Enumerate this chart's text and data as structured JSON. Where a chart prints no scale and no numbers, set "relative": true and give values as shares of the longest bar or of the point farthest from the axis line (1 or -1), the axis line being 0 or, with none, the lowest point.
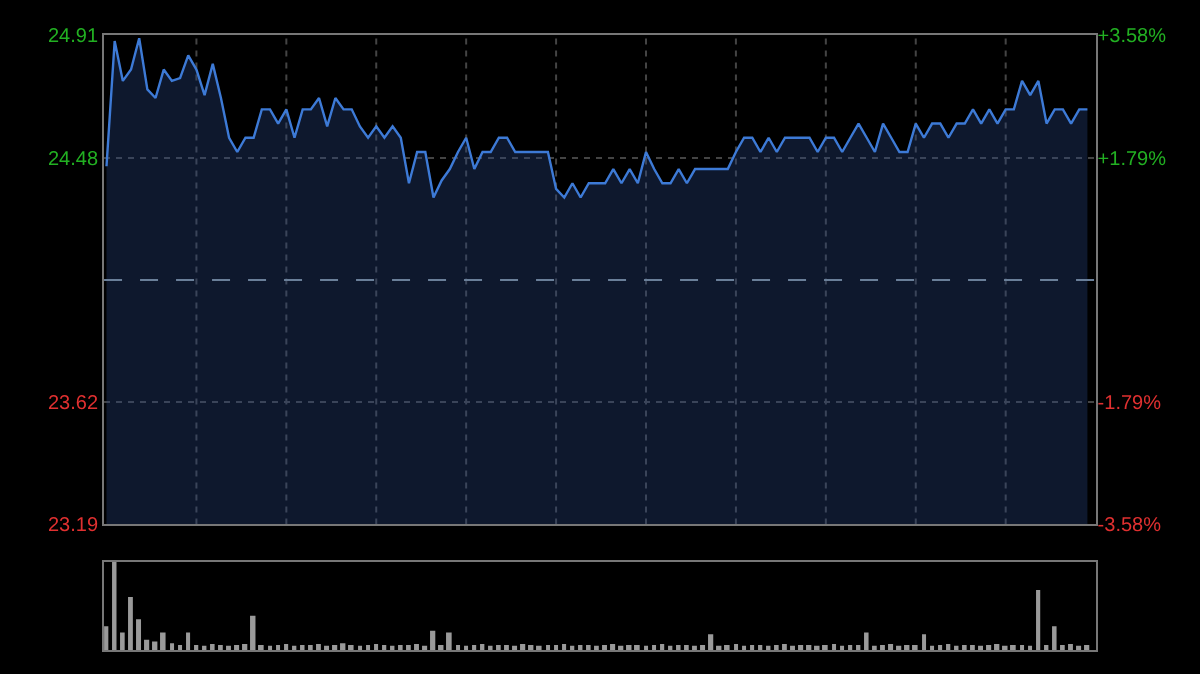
{
  "chart_data": [
    {
      "type": "area",
      "color": "#3d7ad6",
      "categories": [
        null,
        null,
        null,
        null,
        null,
        null,
        null,
        null,
        null,
        null,
        null,
        null,
        null,
        null,
        null,
        null,
        null,
        null,
        null,
        null,
        null,
        null,
        null,
        null,
        null,
        null,
        null,
        null,
        null,
        null,
        null,
        null,
        null,
        null,
        null,
        null,
        null,
        null,
        null,
        null,
        null,
        null,
        null,
        null,
        null,
        null,
        null,
        null,
        null,
        null,
        null,
        null,
        null,
        null,
        null,
        null,
        null,
        null,
        null,
        null,
        null,
        null,
        null,
        null,
        null,
        null,
        null,
        null,
        null,
        null,
        null,
        null,
        null,
        null,
        null,
        null,
        null,
        null,
        null,
        null,
        null,
        null,
        null,
        null,
        null,
        null,
        null,
        null,
        null,
        null,
        null,
        null,
        null,
        null,
        null,
        null,
        null,
        null,
        null,
        null,
        null,
        null,
        null,
        null,
        null,
        null,
        null,
        null,
        null,
        null,
        null,
        null,
        null,
        null,
        null,
        null,
        null,
        null,
        null,
        null,
        null
      ],
      "values": [
        24.45,
        24.89,
        24.75,
        24.79,
        24.9,
        24.72,
        24.69,
        24.79,
        24.75,
        24.76,
        24.84,
        24.79,
        24.7,
        24.81,
        24.69,
        24.55,
        24.5,
        24.55,
        24.55,
        24.65,
        24.65,
        24.6,
        24.65,
        24.55,
        24.65,
        24.65,
        24.69,
        24.59,
        24.69,
        24.65,
        24.65,
        24.59,
        24.55,
        24.59,
        24.55,
        24.59,
        24.55,
        24.39,
        24.5,
        24.5,
        24.34,
        24.4,
        24.44,
        24.5,
        24.55,
        24.44,
        24.5,
        24.5,
        24.55,
        24.55,
        24.5,
        24.5,
        24.5,
        24.5,
        24.5,
        24.37,
        24.34,
        24.39,
        24.34,
        24.39,
        24.39,
        24.39,
        24.44,
        24.39,
        24.44,
        24.39,
        24.5,
        24.44,
        24.39,
        24.39,
        24.44,
        24.39,
        24.44,
        24.44,
        24.44,
        24.44,
        24.44,
        24.5,
        24.55,
        24.55,
        24.5,
        24.55,
        24.5,
        24.55,
        24.55,
        24.55,
        24.55,
        24.5,
        24.55,
        24.55,
        24.5,
        24.55,
        24.6,
        24.55,
        24.5,
        24.6,
        24.55,
        24.5,
        24.5,
        24.6,
        24.55,
        24.6,
        24.6,
        24.55,
        24.6,
        24.6,
        24.65,
        24.6,
        24.65,
        24.6,
        24.65,
        24.65,
        24.75,
        24.7,
        24.75,
        24.6,
        24.65,
        24.65,
        24.6,
        24.65,
        24.65
      ],
      "ylim": [
        23.19,
        24.91
      ],
      "yticks": [
        23.19,
        23.62,
        24.48,
        24.91
      ],
      "y2lim": [
        -3.58,
        3.58
      ],
      "y2ticks": [
        {
          "value": -3.58,
          "label": "-3.58%"
        },
        {
          "value": -1.79,
          "label": "-1.79%"
        },
        {
          "value": 1.79,
          "label": "+1.79%"
        },
        {
          "value": 3.58,
          "label": "+3.58%"
        }
      ],
      "ref_lines": [
        {
          "axis": "y",
          "value": 24.05,
          "color": "#6a7f99",
          "line_style": "dashed"
        }
      ],
      "grid": true,
      "tick_labels": "y"
    },
    {
      "type": "bar",
      "relative": true,
      "color": "#9a9a9a",
      "categories": [
        null,
        null,
        null,
        null,
        null,
        null,
        null,
        null,
        null,
        null,
        null,
        null,
        null,
        null,
        null,
        null,
        null,
        null,
        null,
        null,
        null,
        null,
        null,
        null,
        null,
        null,
        null,
        null,
        null,
        null,
        null,
        null,
        null,
        null,
        null,
        null,
        null,
        null,
        null,
        null,
        null,
        null,
        null,
        null,
        null,
        null,
        null,
        null,
        null,
        null,
        null,
        null,
        null,
        null,
        null,
        null,
        null,
        null,
        null,
        null,
        null,
        null,
        null,
        null,
        null,
        null,
        null,
        null,
        null,
        null,
        null,
        null,
        null,
        null,
        null,
        null,
        null,
        null,
        null,
        null,
        null,
        null,
        null,
        null,
        null,
        null,
        null,
        null,
        null,
        null,
        null,
        null,
        null,
        null,
        null,
        null,
        null,
        null,
        null,
        null,
        null,
        null,
        null,
        null,
        null,
        null,
        null,
        null,
        null,
        null,
        null,
        null,
        null,
        null,
        null,
        null,
        null,
        null,
        null,
        null,
        null
      ],
      "values": [
        0.27,
        1,
        0.2,
        0.6,
        0.35,
        0.12,
        0.1,
        0.2,
        0.08,
        0.06,
        0.2,
        0.06,
        0.05,
        0.07,
        0.06,
        0.05,
        0.06,
        0.07,
        0.39,
        0.06,
        0.05,
        0.06,
        0.07,
        0.05,
        0.06,
        0.06,
        0.07,
        0.05,
        0.06,
        0.08,
        0.06,
        0.05,
        0.06,
        0.07,
        0.06,
        0.05,
        0.06,
        0.06,
        0.07,
        0.05,
        0.22,
        0.06,
        0.2,
        0.06,
        0.05,
        0.06,
        0.07,
        0.05,
        0.06,
        0.06,
        0.05,
        0.07,
        0.06,
        0.05,
        0.06,
        0.06,
        0.07,
        0.05,
        0.06,
        0.06,
        0.05,
        0.06,
        0.07,
        0.05,
        0.06,
        0.06,
        0.05,
        0.06,
        0.07,
        0.05,
        0.06,
        0.06,
        0.05,
        0.06,
        0.18,
        0.05,
        0.06,
        0.07,
        0.05,
        0.06,
        0.06,
        0.05,
        0.06,
        0.07,
        0.05,
        0.06,
        0.06,
        0.05,
        0.06,
        0.07,
        0.05,
        0.06,
        0.06,
        0.2,
        0.05,
        0.06,
        0.07,
        0.05,
        0.06,
        0.06,
        0.18,
        0.05,
        0.06,
        0.07,
        0.05,
        0.06,
        0.06,
        0.05,
        0.06,
        0.07,
        0.05,
        0.06,
        0.06,
        0.05,
        0.68,
        0.06,
        0.27,
        0.06,
        0.07,
        0.05,
        0.06
      ],
      "tick_labels": false
    }
  ]
}
